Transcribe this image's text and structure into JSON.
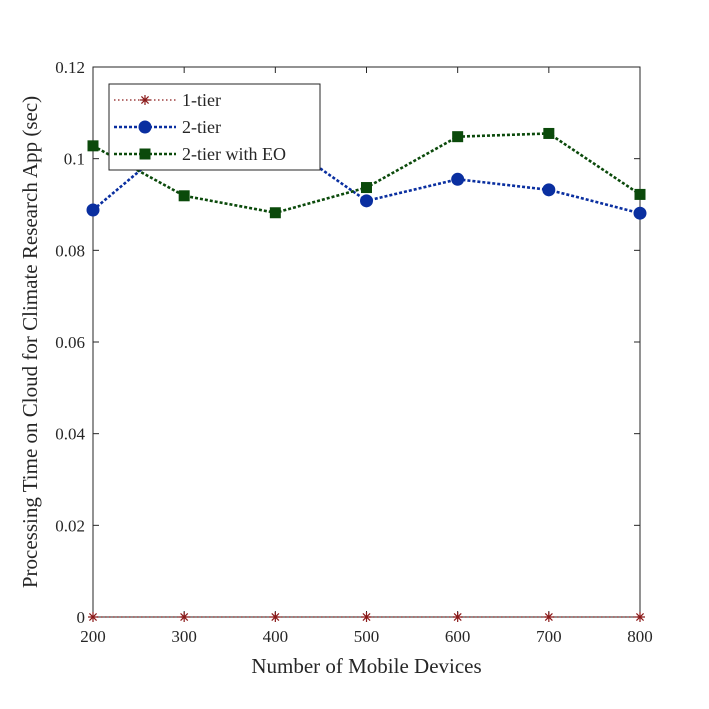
{
  "chart_data": {
    "type": "line",
    "xlabel": "Number of Mobile Devices",
    "ylabel": "Processing Time on Cloud for Climate Research App (sec)",
    "xlim": [
      200,
      800
    ],
    "ylim": [
      0,
      0.12
    ],
    "x_ticks": [
      "200",
      "300",
      "400",
      "500",
      "600",
      "700",
      "800"
    ],
    "y_ticks": [
      "0",
      "0.02",
      "0.04",
      "0.06",
      "0.08",
      "0.1",
      "0.12"
    ],
    "grid": false,
    "legend_position": "top-left",
    "x": [
      200,
      300,
      400,
      500,
      600,
      700,
      800
    ],
    "series": [
      {
        "name": "1-tier",
        "color": "#8b1a1a",
        "marker": "asterisk",
        "line_style": "dotted",
        "values": [
          0,
          0,
          0,
          0,
          0,
          0,
          0
        ]
      },
      {
        "name": "2-tier",
        "color": "#0a2fa0",
        "marker": "circle",
        "line_style": "dashed",
        "values": [
          0.0888,
          0.1055,
          0.1047,
          0.0908,
          0.0955,
          0.0932,
          0.0881
        ]
      },
      {
        "name": "2-tier with EO",
        "color": "#0b4a0b",
        "marker": "square",
        "line_style": "dashed",
        "values": [
          0.1028,
          0.0919,
          0.0882,
          0.0937,
          0.1048,
          0.1055,
          0.0922
        ]
      }
    ]
  }
}
